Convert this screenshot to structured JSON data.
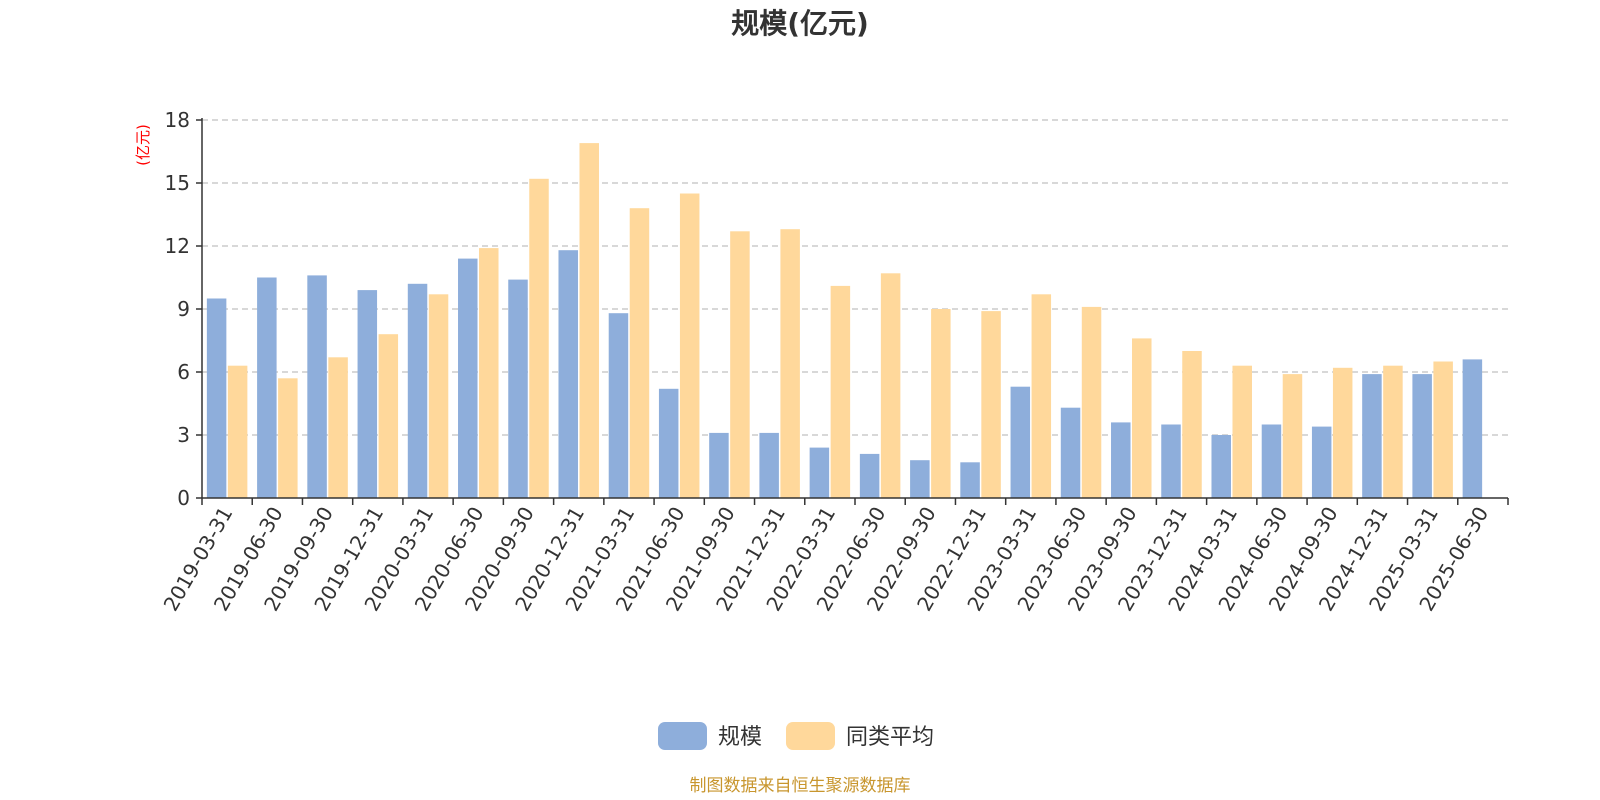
{
  "chart_data": {
    "type": "bar",
    "title": "规模(亿元)",
    "ylabel": "(亿元)",
    "ylim": [
      0,
      18
    ],
    "yticks": [
      0,
      3,
      6,
      9,
      12,
      15,
      18
    ],
    "grid": true,
    "legend_position": "bottom-center",
    "categories": [
      "2019-03-31",
      "2019-06-30",
      "2019-09-30",
      "2019-12-31",
      "2020-03-31",
      "2020-06-30",
      "2020-09-30",
      "2020-12-31",
      "2021-03-31",
      "2021-06-30",
      "2021-09-30",
      "2021-12-31",
      "2022-03-31",
      "2022-06-30",
      "2022-09-30",
      "2022-12-31",
      "2023-03-31",
      "2023-06-30",
      "2023-09-30",
      "2023-12-31",
      "2024-03-31",
      "2024-06-30",
      "2024-09-30",
      "2024-12-31",
      "2025-03-31",
      "2025-06-30"
    ],
    "series": [
      {
        "name": "规模",
        "color": "#8eaedb",
        "values": [
          9.5,
          10.5,
          10.6,
          9.9,
          10.2,
          11.4,
          10.4,
          11.8,
          8.8,
          5.2,
          3.1,
          3.1,
          2.4,
          2.1,
          1.8,
          1.7,
          5.3,
          4.3,
          3.6,
          3.5,
          3.0,
          3.5,
          3.4,
          5.9,
          5.9,
          6.6
        ]
      },
      {
        "name": "同类平均",
        "color": "#ffd89b",
        "values": [
          6.3,
          5.7,
          6.7,
          7.8,
          9.7,
          11.9,
          15.2,
          16.9,
          13.8,
          14.5,
          12.7,
          12.8,
          10.1,
          10.7,
          9.0,
          8.9,
          9.7,
          9.1,
          7.6,
          7.0,
          6.3,
          5.9,
          6.2,
          6.3,
          6.5,
          null
        ]
      }
    ]
  },
  "source_note": "制图数据来自恒生聚源数据库"
}
